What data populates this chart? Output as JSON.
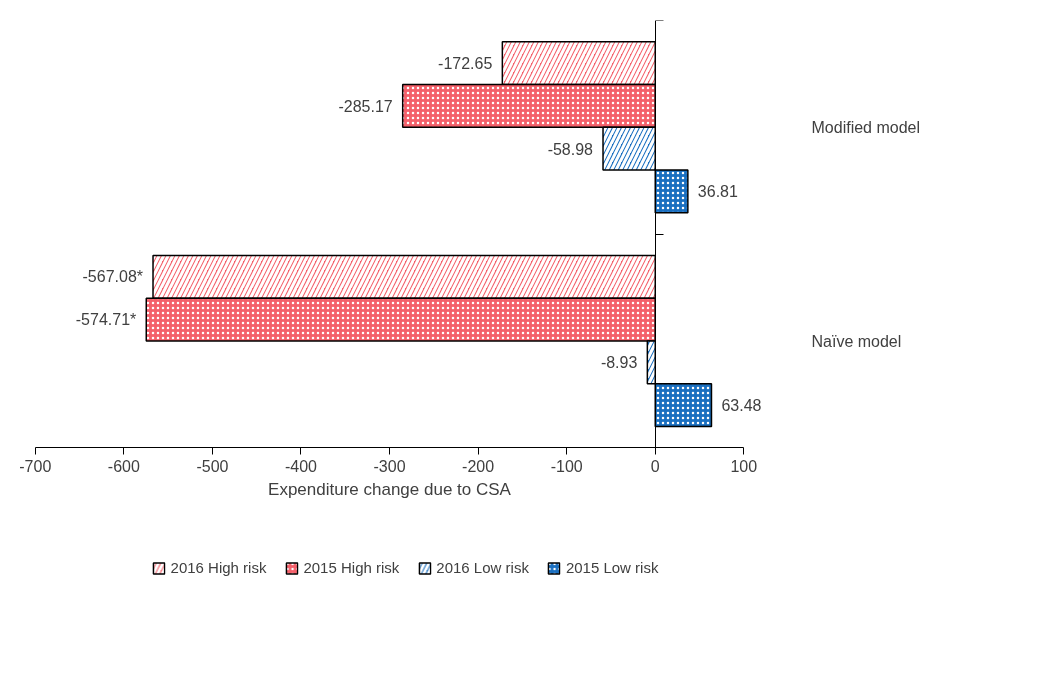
{
  "chart_data": {
    "type": "bar",
    "orientation": "horizontal",
    "xlabel": "Expenditure change due to CSA",
    "categories": [
      "Modified model",
      "Naïve model"
    ],
    "series": [
      {
        "name": "2016 High risk",
        "color": "#f4606a",
        "values": [
          -172.65,
          -567.08
        ],
        "value_labels": [
          "-172.65",
          "-567.08*"
        ]
      },
      {
        "name": "2015 High risk",
        "color": "#f4606a",
        "values": [
          -285.17,
          -574.71
        ],
        "value_labels": [
          "-285.17",
          "-574.71*"
        ]
      },
      {
        "name": "2016 Low risk",
        "color": "#1a6fc0",
        "values": [
          -58.98,
          -8.93
        ],
        "value_labels": [
          "-58.98",
          "-8.93"
        ]
      },
      {
        "name": "2015 Low risk",
        "color": "#1a6fc0",
        "values": [
          36.81,
          63.48
        ],
        "value_labels": [
          "36.81",
          "63.48"
        ]
      }
    ],
    "xlim": [
      -700,
      100
    ],
    "xticks": [
      -700,
      -600,
      -500,
      -400,
      -300,
      -200,
      -100,
      0,
      100
    ],
    "legend": "bottom"
  }
}
